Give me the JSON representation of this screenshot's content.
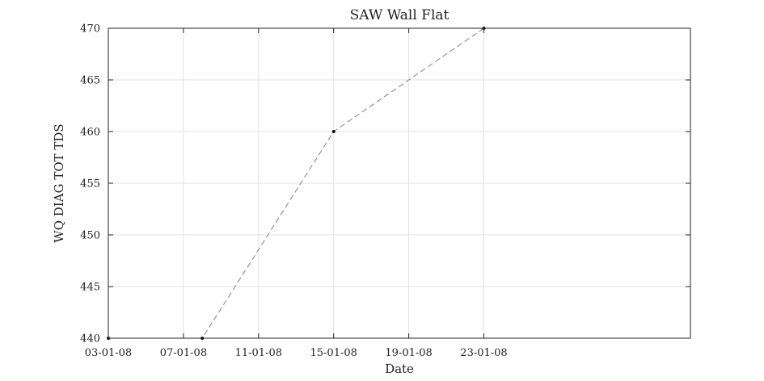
{
  "chart_data": {
    "type": "line",
    "title": "SAW Wall Flat",
    "xlabel": "Date",
    "ylabel": "WQ DIAG TOT TDS",
    "x_ticks": [
      "03-01-08",
      "07-01-08",
      "11-01-08",
      "15-01-08",
      "19-01-08",
      "23-01-08"
    ],
    "y_ticks": [
      "440",
      "445",
      "450",
      "455",
      "460",
      "465",
      "470"
    ],
    "xlim": [
      "2008-01-03",
      "2008-02-03"
    ],
    "ylim": [
      440,
      470
    ],
    "grid": true,
    "series": [
      {
        "x": [
          "2008-01-03",
          "2008-01-08",
          "2008-01-15",
          "2008-01-23"
        ],
        "y": [
          440,
          440,
          460,
          470
        ]
      }
    ]
  }
}
